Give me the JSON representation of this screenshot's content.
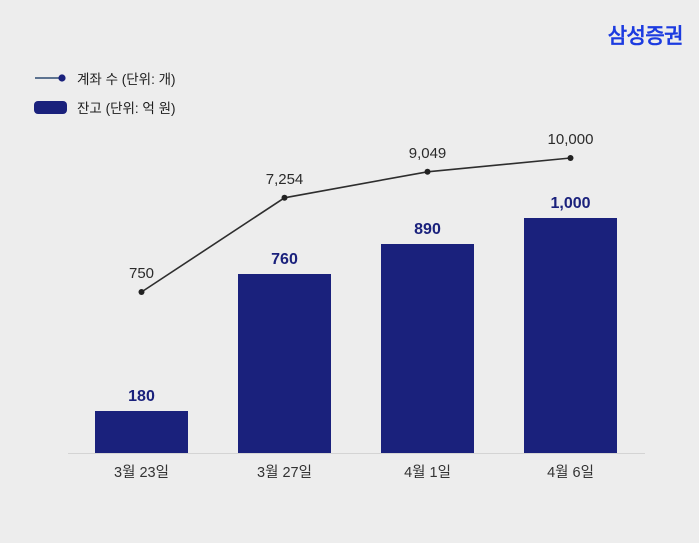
{
  "brand": "삼성증권",
  "legend": {
    "line_label": "계좌 수 (단위: 개)",
    "bar_label": "잔고 (단위: 억 원)"
  },
  "colors": {
    "background": "#EDEDED",
    "brand_blue": "#1C3BE0",
    "bar_navy": "#1A217C",
    "line_dark": "#2E2E2E",
    "axis_gray": "#D4D4D4"
  },
  "chart_data": {
    "type": "combo",
    "categories": [
      "3월 23일",
      "3월 27일",
      "4월 1일",
      "4월 6일"
    ],
    "series": [
      {
        "name": "계좌 수 (단위: 개)",
        "chart_type": "line",
        "values": [
          750,
          7254,
          9049,
          10000
        ],
        "labels": [
          "750",
          "7,254",
          "9,049",
          "10,000"
        ],
        "color": "#2E2E2E"
      },
      {
        "name": "잔고 (단위: 억 원)",
        "chart_type": "bar",
        "values": [
          180,
          760,
          890,
          1000
        ],
        "labels": [
          "180",
          "760",
          "890",
          "1,000"
        ],
        "color": "#1A217C"
      }
    ],
    "title": "",
    "xlabel": "",
    "ylabel": "",
    "grid": false,
    "legend_position": "top-left",
    "bar_ylim": [
      0,
      1000
    ],
    "line_ylim": [
      750,
      10000
    ]
  }
}
